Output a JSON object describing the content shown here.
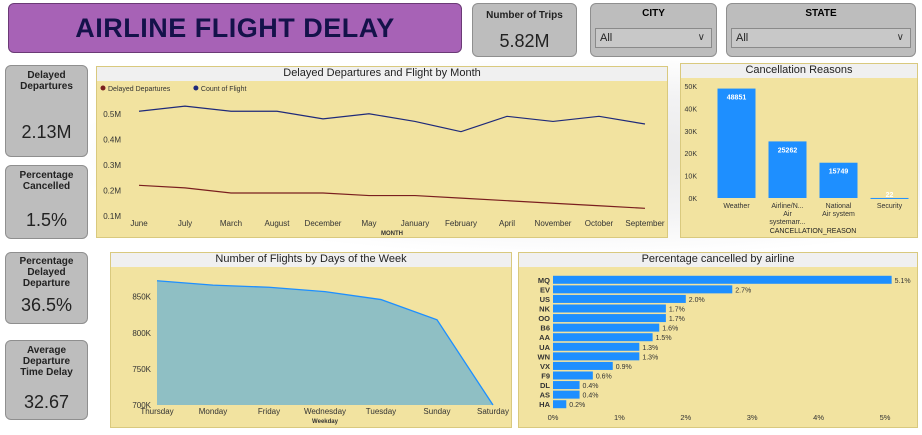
{
  "header": {
    "title": "AIRLINE FLIGHT DELAY"
  },
  "kpis": {
    "trips": {
      "label": "Number of Trips",
      "value": "5.82M"
    },
    "delayed": {
      "label": "Delayed Departures",
      "value": "2.13M"
    },
    "cancelled": {
      "label": "Percentage Cancelled",
      "value": "1.5%"
    },
    "pct_delayed": {
      "label": "Percentage Delayed Departure",
      "value": "36.5%"
    },
    "avg_delay": {
      "label": "Average Departure Time Delay",
      "value": "32.67"
    }
  },
  "slicers": {
    "city": {
      "label": "CITY",
      "value": "All"
    },
    "state": {
      "label": "STATE",
      "value": "All"
    }
  },
  "colors": {
    "navy": "#1f2a7a",
    "maroon": "#7a1f1f",
    "blue": "#1e8fff",
    "area": "#8fbfc4",
    "panel": "#f2e3a0"
  },
  "chart_data": [
    {
      "type": "line",
      "title": "Delayed Departures and Flight by Month",
      "xlabel": "MONTH",
      "categories": [
        "June",
        "July",
        "March",
        "August",
        "December",
        "May",
        "January",
        "February",
        "April",
        "November",
        "October",
        "September"
      ],
      "series": [
        {
          "name": "Delayed  Departures",
          "color": "#7a1f1f",
          "values": [
            0.22,
            0.21,
            0.19,
            0.19,
            0.19,
            0.18,
            0.18,
            0.17,
            0.16,
            0.15,
            0.14,
            0.13
          ]
        },
        {
          "name": "Count of Flight",
          "color": "#1f2a7a",
          "values": [
            0.51,
            0.53,
            0.51,
            0.51,
            0.48,
            0.5,
            0.47,
            0.43,
            0.49,
            0.47,
            0.49,
            0.46
          ]
        }
      ],
      "yticks": [
        "0.1M",
        "0.2M",
        "0.3M",
        "0.4M",
        "0.5M"
      ],
      "ylim": [
        0.1,
        0.55
      ],
      "legend": "top-left"
    },
    {
      "type": "bar",
      "title": "Cancellation Reasons",
      "xlabel": "CANCELLATION_REASON",
      "categories": [
        "Weather",
        "Airline/N... Air systemarr...",
        "National Air system",
        "Security"
      ],
      "values": [
        48851,
        25262,
        15749,
        22
      ],
      "labels": [
        "48851",
        "25262",
        "15749",
        "22"
      ],
      "yticks": [
        "0K",
        "10K",
        "20K",
        "30K",
        "40K",
        "50K"
      ],
      "ylim": [
        0,
        50000
      ]
    },
    {
      "type": "area",
      "title": "Number of Flights by Days of the Week",
      "xlabel": "Weekday",
      "categories": [
        "Thursday",
        "Monday",
        "Friday",
        "Wednesday",
        "Tuesday",
        "Sunday",
        "Saturday"
      ],
      "values": [
        872000,
        866000,
        863000,
        857000,
        846000,
        818000,
        700000
      ],
      "yticks": [
        "700K",
        "750K",
        "800K",
        "850K"
      ],
      "ylim": [
        700000,
        880000
      ]
    },
    {
      "type": "bar",
      "orientation": "horizontal",
      "title": "Percentage cancelled by airline",
      "categories": [
        "MQ",
        "EV",
        "US",
        "NK",
        "OO",
        "B6",
        "AA",
        "UA",
        "WN",
        "VX",
        "F9",
        "DL",
        "AS",
        "HA"
      ],
      "values": [
        5.1,
        2.7,
        2.0,
        1.7,
        1.7,
        1.6,
        1.5,
        1.3,
        1.3,
        0.9,
        0.6,
        0.4,
        0.4,
        0.2
      ],
      "labels": [
        "5.1%",
        "2.7%",
        "2.0%",
        "1.7%",
        "1.7%",
        "1.6%",
        "1.5%",
        "1.3%",
        "1.3%",
        "0.9%",
        "0.6%",
        "0.4%",
        "0.4%",
        "0.2%"
      ],
      "xticks": [
        "0%",
        "1%",
        "2%",
        "3%",
        "4%",
        "5%"
      ],
      "xlim": [
        0,
        5.1
      ]
    }
  ]
}
